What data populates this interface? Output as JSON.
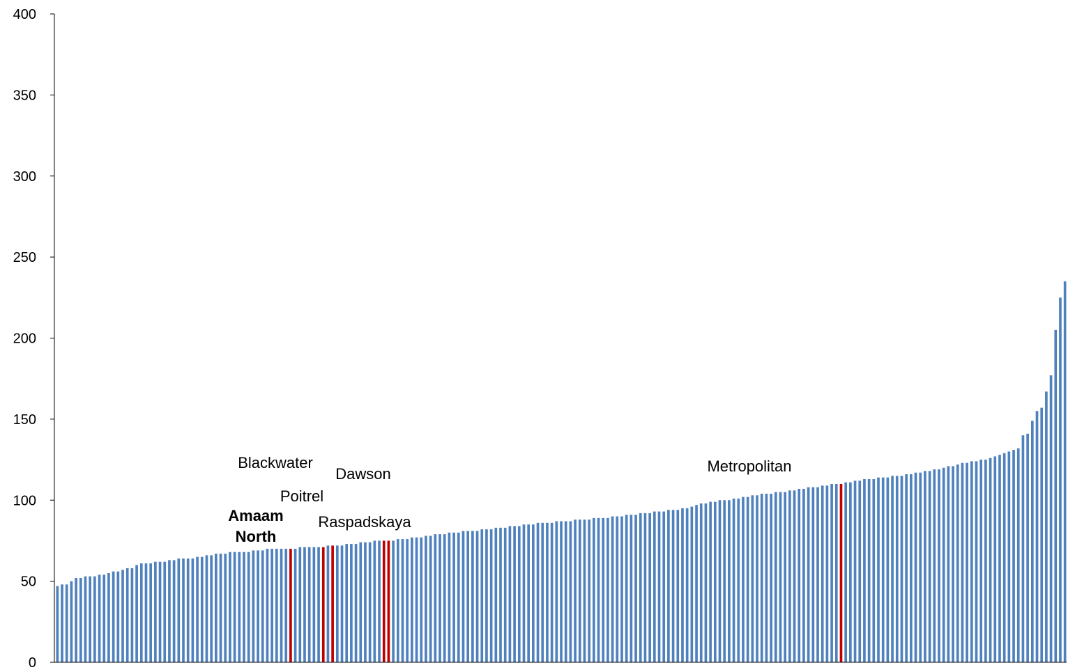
{
  "colors": {
    "bar": "#4F81BD",
    "highlight": "#C00000",
    "axis": "#000000"
  },
  "chart_data": {
    "type": "bar",
    "title": "",
    "xlabel": "",
    "ylabel": "",
    "ylim": [
      0,
      400
    ],
    "yticks": [
      0,
      50,
      100,
      150,
      200,
      250,
      300,
      350,
      400
    ],
    "grid": false,
    "legend": "none",
    "highlights": [
      {
        "index": 50,
        "label": "Amaam\nNorth",
        "bold": true
      },
      {
        "index": 57,
        "label": "Blackwater",
        "bold": false
      },
      {
        "index": 59,
        "label": "Poitrel",
        "bold": false
      },
      {
        "index": 70,
        "label": "Raspadskaya",
        "bold": false
      },
      {
        "index": 71,
        "label": "Dawson",
        "bold": false
      },
      {
        "index": 168,
        "label": "Metropolitan",
        "bold": false
      }
    ],
    "values": [
      47,
      48,
      48,
      50,
      52,
      52,
      53,
      53,
      53,
      54,
      54,
      55,
      56,
      56,
      57,
      58,
      58,
      60,
      61,
      61,
      61,
      62,
      62,
      62,
      63,
      63,
      64,
      64,
      64,
      64,
      65,
      65,
      66,
      66,
      67,
      67,
      67,
      68,
      68,
      68,
      68,
      68,
      69,
      69,
      69,
      70,
      70,
      70,
      70,
      70,
      70,
      70,
      71,
      71,
      71,
      71,
      71,
      71,
      72,
      72,
      72,
      72,
      73,
      73,
      73,
      74,
      74,
      74,
      75,
      75,
      75,
      75,
      75,
      76,
      76,
      76,
      77,
      77,
      77,
      78,
      78,
      79,
      79,
      79,
      80,
      80,
      80,
      81,
      81,
      81,
      81,
      82,
      82,
      82,
      83,
      83,
      83,
      84,
      84,
      84,
      85,
      85,
      85,
      86,
      86,
      86,
      86,
      87,
      87,
      87,
      87,
      88,
      88,
      88,
      88,
      89,
      89,
      89,
      89,
      90,
      90,
      90,
      91,
      91,
      91,
      92,
      92,
      92,
      93,
      93,
      93,
      94,
      94,
      94,
      95,
      95,
      96,
      97,
      98,
      98,
      99,
      99,
      100,
      100,
      100,
      101,
      101,
      102,
      102,
      103,
      103,
      104,
      104,
      104,
      105,
      105,
      105,
      106,
      106,
      107,
      107,
      108,
      108,
      108,
      109,
      109,
      110,
      110,
      110,
      111,
      111,
      112,
      112,
      113,
      113,
      113,
      114,
      114,
      114,
      115,
      115,
      115,
      116,
      116,
      117,
      117,
      118,
      118,
      119,
      119,
      120,
      121,
      121,
      122,
      123,
      123,
      124,
      124,
      125,
      125,
      126,
      127,
      128,
      129,
      130,
      131,
      132,
      140,
      141,
      149,
      155,
      157,
      167,
      177,
      205,
      225,
      235
    ]
  }
}
